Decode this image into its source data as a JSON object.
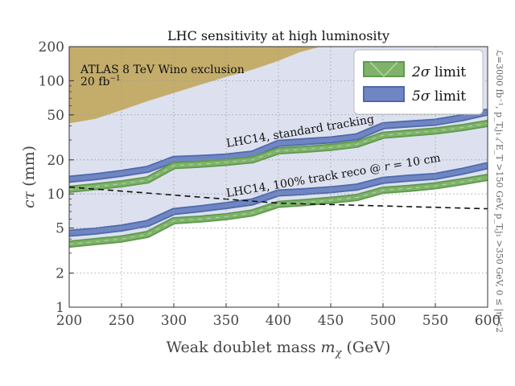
{
  "chart_data": {
    "type": "line",
    "title": "LHC sensitivity at high luminosity",
    "xlabel": "Weak doublet mass mχ (GeV)",
    "xlabel_main": "Weak doublet mass ",
    "xlabel_var": "m",
    "xlabel_sub": "χ",
    "xlabel_unit": " (GeV)",
    "ylabel": "cτ (mm)",
    "ylabel_var": "cτ",
    "ylabel_unit": " (mm)",
    "xlim": [
      200,
      600
    ],
    "ylim": [
      1,
      200
    ],
    "yscale": "log",
    "grid": true,
    "x_ticks": [
      200,
      250,
      300,
      350,
      400,
      450,
      500,
      550,
      600
    ],
    "x_tick_labels": [
      "200",
      "250",
      "300",
      "350",
      "400",
      "450",
      "500",
      "550",
      "600"
    ],
    "y_ticks": [
      1,
      2,
      5,
      10,
      20,
      50,
      100,
      200
    ],
    "y_tick_labels": [
      "1",
      "2",
      "5",
      "10",
      "20",
      "50",
      "100",
      "200"
    ],
    "legend_position": "top-right",
    "legend": [
      {
        "label": "2σ limit",
        "label_sym": "2σ",
        "label_rest": " limit",
        "color": "#7fb36a",
        "edge": "#5e9a4c"
      },
      {
        "label": "5σ limit",
        "label_sym": "5σ",
        "label_rest": " limit",
        "color": "#6f86c2",
        "edge": "#4f69ad"
      }
    ],
    "x": [
      200,
      225,
      250,
      275,
      300,
      325,
      350,
      375,
      400,
      425,
      450,
      475,
      500,
      525,
      550,
      575,
      600
    ],
    "series": [
      {
        "group": "standard tracking",
        "band": "5σ",
        "values": [
          13.5,
          14.2,
          15.2,
          16.5,
          20.2,
          20.6,
          21.2,
          22.5,
          28.0,
          29.0,
          30.0,
          32.0,
          40.0,
          41.5,
          43.0,
          47.0,
          53.0
        ]
      },
      {
        "group": "standard tracking",
        "band": "2σ",
        "values": [
          11.0,
          11.6,
          12.3,
          13.3,
          17.8,
          18.3,
          19.0,
          20.0,
          24.0,
          24.8,
          25.8,
          27.5,
          33.0,
          34.5,
          36.0,
          38.5,
          42.0
        ]
      },
      {
        "group": "100% track reco",
        "band": "5σ",
        "values": [
          4.5,
          4.7,
          5.0,
          5.5,
          7.0,
          7.4,
          7.9,
          8.5,
          10.2,
          10.5,
          10.9,
          11.5,
          13.2,
          13.8,
          14.3,
          15.8,
          17.8
        ]
      },
      {
        "group": "100% track reco",
        "band": "2σ",
        "values": [
          3.6,
          3.8,
          4.0,
          4.4,
          5.8,
          6.0,
          6.3,
          6.8,
          8.1,
          8.4,
          8.8,
          9.3,
          10.8,
          11.2,
          11.8,
          12.8,
          14.0
        ]
      }
    ],
    "exclusion": {
      "label": "ATLAS 8 TeV Wino exclusion",
      "sublabel_main": "20 fb",
      "sublabel_sup": "−1",
      "color": "#c4ad6b",
      "x": [
        200,
        225,
        250,
        275,
        300,
        325,
        350,
        375,
        400,
        420,
        440
      ],
      "lower": [
        42,
        46,
        55,
        66,
        78,
        92,
        108,
        125,
        150,
        178,
        200
      ]
    },
    "sensitivity_region_color": "#dde1ef",
    "dashed_line": {
      "x": [
        200,
        400,
        600
      ],
      "values": [
        11.5,
        8.3,
        7.4
      ]
    },
    "annotations": [
      {
        "text": "LHC14, standard tracking"
      },
      {
        "text": "LHC14, 100% track reco @ ",
        "var": "r",
        "rest": " = 10 cm"
      }
    ],
    "side_note": "ℒ=3000 fb⁻¹, p_T,j₁ , ̸E_T >150 GeV, p_T,j₁ >350 GeV, 0 ≤ |η|<2"
  }
}
